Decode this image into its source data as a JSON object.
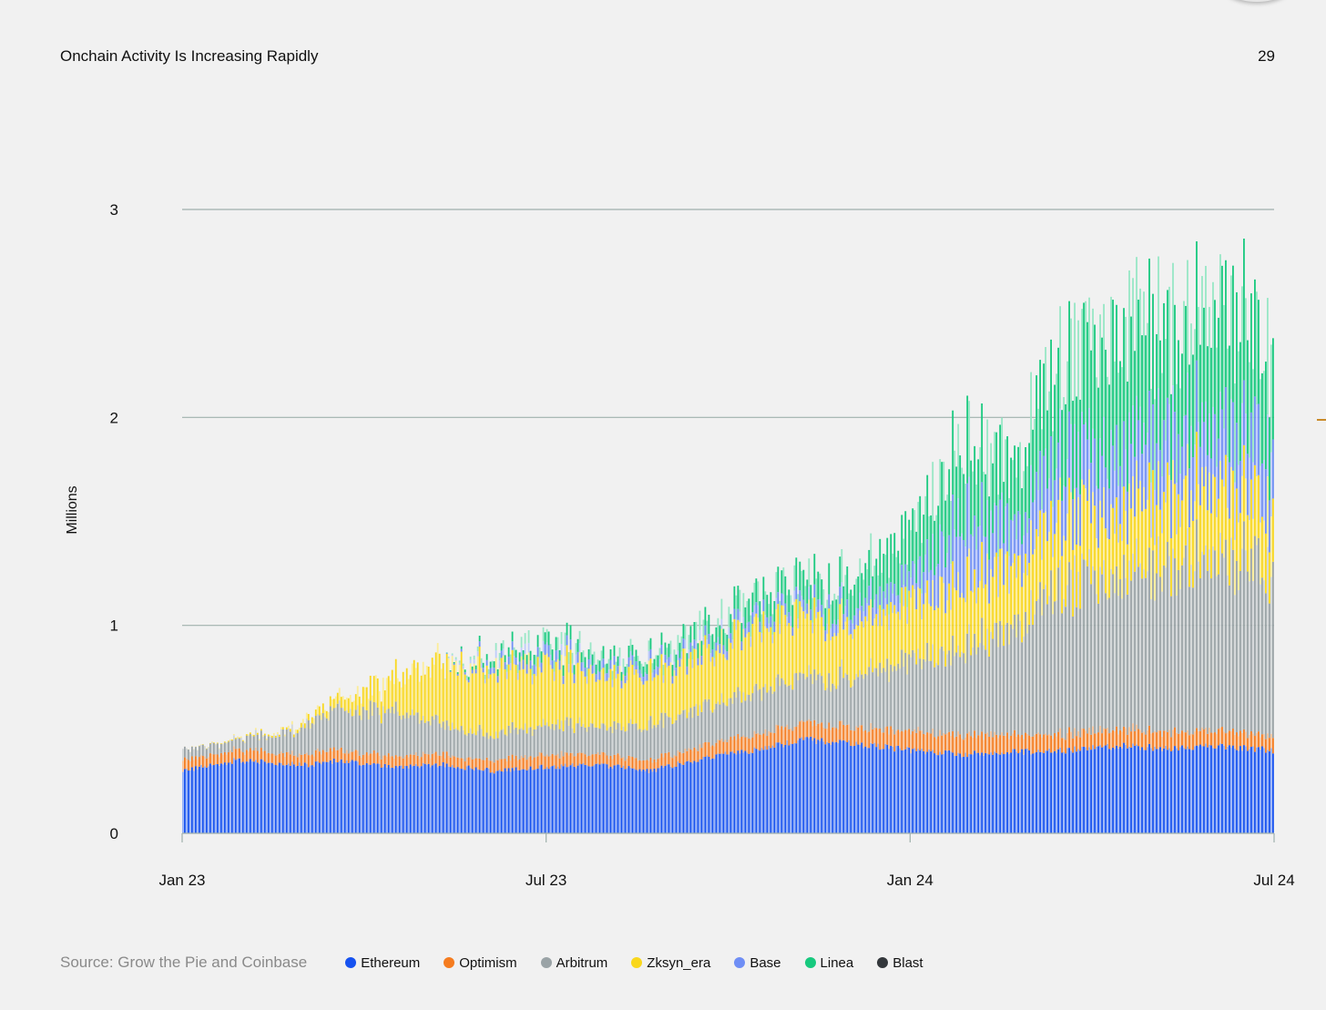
{
  "header": {
    "title": "Onchain Activity Is Increasing Rapidly",
    "page_number": "29"
  },
  "footer": {
    "source": "Source: Grow the Pie and Coinbase"
  },
  "chart_data": {
    "type": "bar",
    "stacked": true,
    "ylabel": "Millions",
    "ylim": [
      0,
      3
    ],
    "yticks": [
      "0",
      "1",
      "2",
      "3"
    ],
    "xticks": [
      "Jan 23",
      "Jul 23",
      "Jan 24",
      "Jul 24"
    ],
    "grid": true,
    "legend_position": "bottom",
    "series": [
      {
        "name": "Ethereum",
        "color": "#1652f0",
        "anchors": [
          [
            0,
            0.3
          ],
          [
            2,
            0.35
          ],
          [
            5,
            0.33
          ],
          [
            6,
            0.35
          ],
          [
            8,
            0.32
          ],
          [
            10,
            0.33
          ],
          [
            12,
            0.3
          ],
          [
            14,
            0.32
          ],
          [
            16,
            0.33
          ],
          [
            18,
            0.3
          ],
          [
            20,
            0.36
          ],
          [
            22,
            0.4
          ],
          [
            24,
            0.45
          ],
          [
            26,
            0.43
          ],
          [
            28,
            0.4
          ],
          [
            30,
            0.38
          ],
          [
            34,
            0.4
          ],
          [
            36,
            0.42
          ],
          [
            38,
            0.41
          ],
          [
            40,
            0.42
          ],
          [
            42,
            0.4
          ]
        ]
      },
      {
        "name": "Optimism",
        "color": "#f57c1f",
        "anchors": [
          [
            0,
            0.05
          ],
          [
            4,
            0.05
          ],
          [
            8,
            0.05
          ],
          [
            12,
            0.05
          ],
          [
            14,
            0.06
          ],
          [
            16,
            0.05
          ],
          [
            18,
            0.05
          ],
          [
            20,
            0.06
          ],
          [
            22,
            0.07
          ],
          [
            24,
            0.08
          ],
          [
            26,
            0.08
          ],
          [
            28,
            0.09
          ],
          [
            30,
            0.09
          ],
          [
            34,
            0.08
          ],
          [
            38,
            0.08
          ],
          [
            42,
            0.07
          ]
        ]
      },
      {
        "name": "Arbitrum",
        "color": "#9aa3a6",
        "anchors": [
          [
            0,
            0.05
          ],
          [
            2,
            0.05
          ],
          [
            4,
            0.1
          ],
          [
            6,
            0.2
          ],
          [
            8,
            0.22
          ],
          [
            10,
            0.15
          ],
          [
            12,
            0.12
          ],
          [
            14,
            0.15
          ],
          [
            16,
            0.13
          ],
          [
            18,
            0.17
          ],
          [
            20,
            0.18
          ],
          [
            22,
            0.2
          ],
          [
            24,
            0.22
          ],
          [
            26,
            0.25
          ],
          [
            28,
            0.35
          ],
          [
            30,
            0.4
          ],
          [
            32,
            0.5
          ],
          [
            34,
            0.75
          ],
          [
            36,
            0.75
          ],
          [
            38,
            0.8
          ],
          [
            40,
            0.85
          ],
          [
            42,
            0.8
          ]
        ]
      },
      {
        "name": "Zksyn_era",
        "color": "#f9d71c",
        "anchors": [
          [
            0,
            0.0
          ],
          [
            4,
            0.01
          ],
          [
            6,
            0.05
          ],
          [
            8,
            0.15
          ],
          [
            10,
            0.3
          ],
          [
            12,
            0.3
          ],
          [
            14,
            0.3
          ],
          [
            16,
            0.25
          ],
          [
            18,
            0.25
          ],
          [
            20,
            0.25
          ],
          [
            22,
            0.3
          ],
          [
            24,
            0.3
          ],
          [
            26,
            0.25
          ],
          [
            28,
            0.3
          ],
          [
            30,
            0.3
          ],
          [
            32,
            0.3
          ],
          [
            34,
            0.35
          ],
          [
            36,
            0.3
          ],
          [
            38,
            0.35
          ],
          [
            40,
            0.35
          ],
          [
            42,
            0.3
          ]
        ]
      },
      {
        "name": "Base",
        "color": "#6f8ef5",
        "anchors": [
          [
            0,
            0
          ],
          [
            10,
            0
          ],
          [
            12,
            0.03
          ],
          [
            14,
            0.05
          ],
          [
            16,
            0.04
          ],
          [
            18,
            0.04
          ],
          [
            20,
            0.04
          ],
          [
            22,
            0.05
          ],
          [
            24,
            0.05
          ],
          [
            26,
            0.08
          ],
          [
            28,
            0.1
          ],
          [
            30,
            0.3
          ],
          [
            32,
            0.2
          ],
          [
            34,
            0.3
          ],
          [
            36,
            0.3
          ],
          [
            38,
            0.3
          ],
          [
            40,
            0.3
          ],
          [
            42,
            0.3
          ]
        ]
      },
      {
        "name": "Linea",
        "color": "#17c97e",
        "anchors": [
          [
            0,
            0
          ],
          [
            10,
            0
          ],
          [
            12,
            0.03
          ],
          [
            14,
            0.06
          ],
          [
            16,
            0.05
          ],
          [
            18,
            0.05
          ],
          [
            20,
            0.08
          ],
          [
            22,
            0.1
          ],
          [
            24,
            0.12
          ],
          [
            26,
            0.15
          ],
          [
            28,
            0.25
          ],
          [
            30,
            0.35
          ],
          [
            32,
            0.3
          ],
          [
            34,
            0.5
          ],
          [
            36,
            0.6
          ],
          [
            38,
            0.5
          ],
          [
            40,
            0.6
          ],
          [
            42,
            0.5
          ]
        ]
      },
      {
        "name": "Blast",
        "color": "#33373b",
        "anchors": [
          [
            0,
            0
          ],
          [
            42,
            0
          ]
        ]
      }
    ],
    "period_index_range": [
      0,
      42
    ]
  }
}
